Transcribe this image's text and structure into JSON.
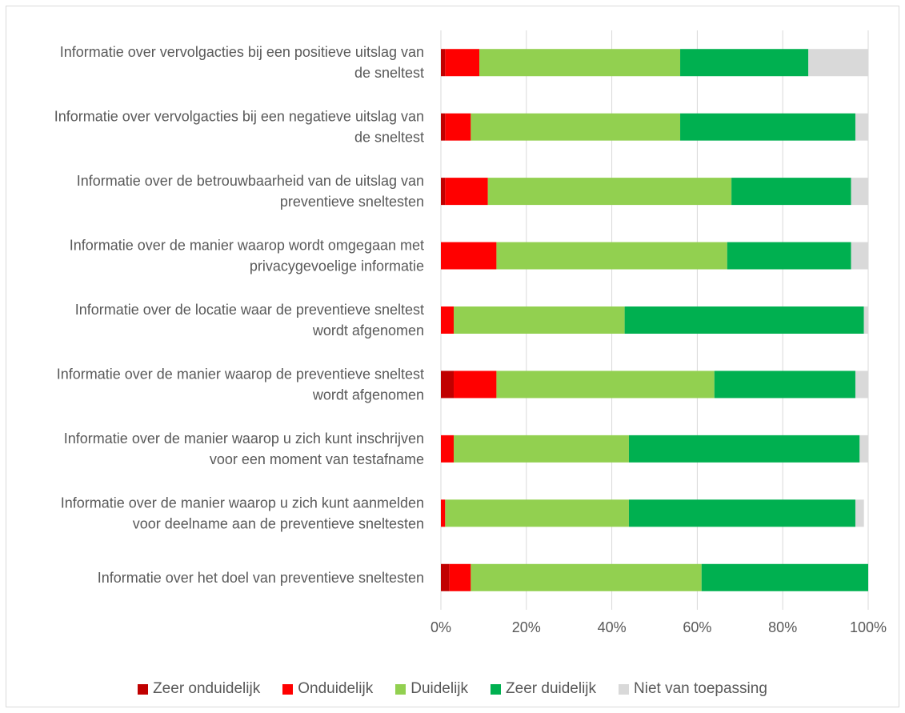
{
  "chart_data": {
    "type": "bar",
    "orientation": "horizontal",
    "stacked": "percent",
    "categories": [
      [
        "Informatie over vervolgacties bij een positieve uitslag van",
        "de sneltest"
      ],
      [
        "Informatie over vervolgacties bij een negatieve uitslag van",
        "de sneltest"
      ],
      [
        "Informatie over de betrouwbaarheid van de uitslag van",
        "preventieve sneltesten"
      ],
      [
        "Informatie over de manier waarop wordt omgegaan met",
        "privacygevoelige informatie"
      ],
      [
        "Informatie over de locatie waar de preventieve sneltest",
        "wordt afgenomen"
      ],
      [
        "Informatie over de manier waarop de preventieve sneltest",
        "wordt afgenomen"
      ],
      [
        "Informatie over de manier waarop u zich kunt inschrijven",
        "voor een moment van testafname"
      ],
      [
        "Informatie over de manier waarop u zich kunt aanmelden",
        "voor deelname aan de preventieve sneltesten"
      ],
      [
        "Informatie over het doel van preventieve sneltesten"
      ]
    ],
    "series": [
      {
        "name": "Zeer onduidelijk",
        "color": "#c00000",
        "values": [
          1,
          1,
          1,
          0,
          0,
          3,
          0,
          0,
          2
        ]
      },
      {
        "name": "Onduidelijk",
        "color": "#ff0000",
        "values": [
          8,
          6,
          10,
          13,
          3,
          10,
          3,
          1,
          5
        ]
      },
      {
        "name": "Duidelijk",
        "color": "#92d050",
        "values": [
          47,
          49,
          57,
          54,
          40,
          51,
          41,
          43,
          54
        ]
      },
      {
        "name": "Zeer duidelijk",
        "color": "#00b050",
        "values": [
          30,
          41,
          28,
          29,
          56,
          33,
          54,
          53,
          39
        ]
      },
      {
        "name": "Niet van toepassing",
        "color": "#d9d9d9",
        "values": [
          14,
          3,
          4,
          4,
          1,
          3,
          2,
          2,
          0
        ]
      }
    ],
    "x_ticks": [
      "0%",
      "20%",
      "40%",
      "60%",
      "80%",
      "100%"
    ],
    "xlim": [
      0,
      100
    ],
    "grid": true,
    "legend_position": "bottom"
  }
}
